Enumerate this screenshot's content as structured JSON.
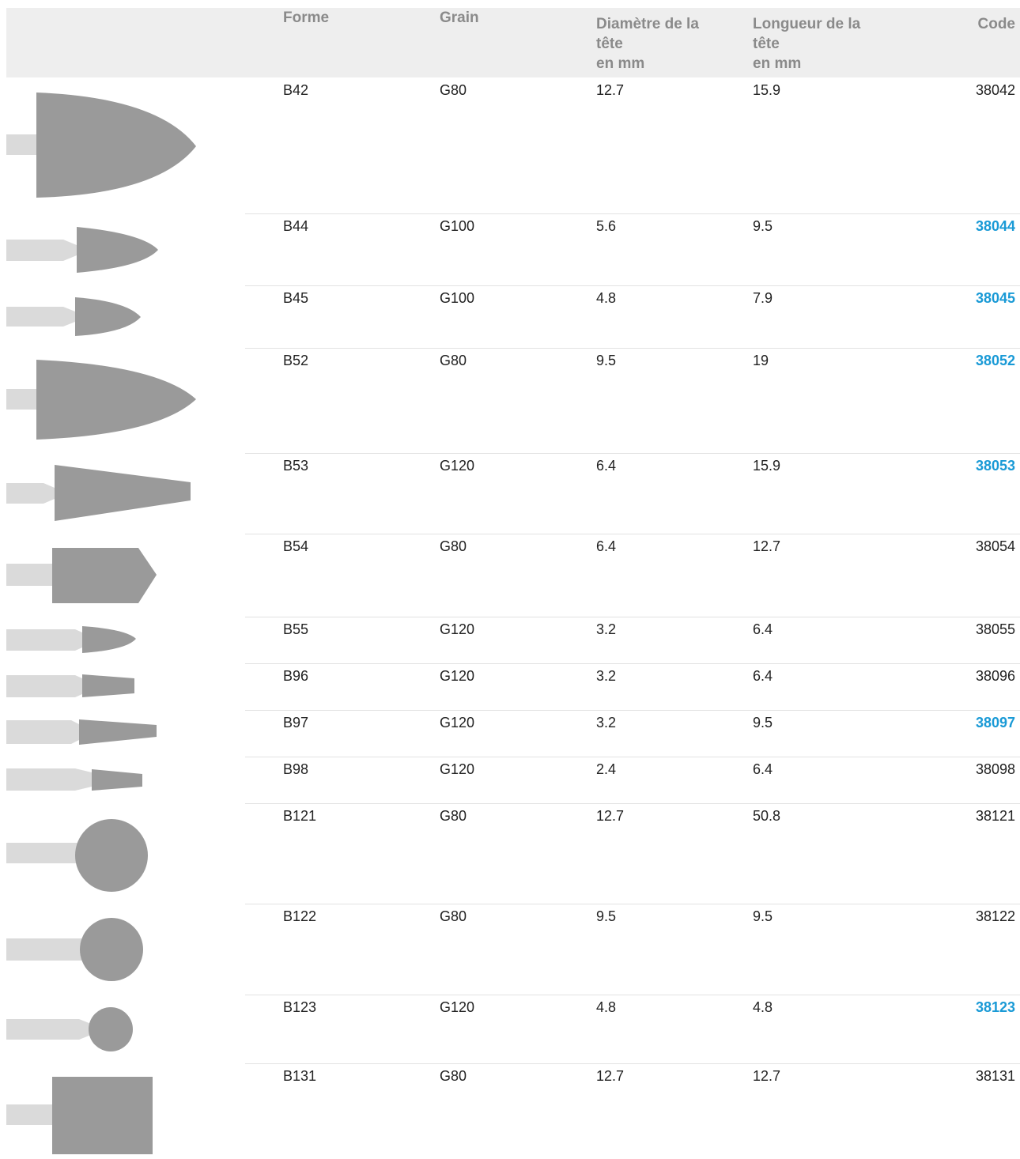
{
  "header": {
    "image": "",
    "forme": "Forme",
    "grain": "Grain",
    "diametre": [
      "Diamètre de la",
      "tête",
      "en mm"
    ],
    "longueur": [
      "Longueur de la",
      "tête",
      "en mm"
    ],
    "code": "Code"
  },
  "rows": [
    {
      "forme": "B42",
      "grain": "G80",
      "diametre": "12.7",
      "longueur": "15.9",
      "code": "38042",
      "link": false
    },
    {
      "forme": "B44",
      "grain": "G100",
      "diametre": "5.6",
      "longueur": "9.5",
      "code": "38044",
      "link": true
    },
    {
      "forme": "B45",
      "grain": "G100",
      "diametre": "4.8",
      "longueur": "7.9",
      "code": "38045",
      "link": true
    },
    {
      "forme": "B52",
      "grain": "G80",
      "diametre": "9.5",
      "longueur": "19",
      "code": "38052",
      "link": true
    },
    {
      "forme": "B53",
      "grain": "G120",
      "diametre": "6.4",
      "longueur": "15.9",
      "code": "38053",
      "link": true
    },
    {
      "forme": "B54",
      "grain": "G80",
      "diametre": "6.4",
      "longueur": "12.7",
      "code": "38054",
      "link": false
    },
    {
      "forme": "B55",
      "grain": "G120",
      "diametre": "3.2",
      "longueur": "6.4",
      "code": "38055",
      "link": false
    },
    {
      "forme": "B96",
      "grain": "G120",
      "diametre": "3.2",
      "longueur": "6.4",
      "code": "38096",
      "link": false
    },
    {
      "forme": "B97",
      "grain": "G120",
      "diametre": "3.2",
      "longueur": "9.5",
      "code": "38097",
      "link": true
    },
    {
      "forme": "B98",
      "grain": "G120",
      "diametre": "2.4",
      "longueur": "6.4",
      "code": "38098",
      "link": false
    },
    {
      "forme": "B121",
      "grain": "G80",
      "diametre": "12.7",
      "longueur": "50.8",
      "code": "38121",
      "link": false
    },
    {
      "forme": "B122",
      "grain": "G80",
      "diametre": "9.5",
      "longueur": "9.5",
      "code": "38122",
      "link": false
    },
    {
      "forme": "B123",
      "grain": "G120",
      "diametre": "4.8",
      "longueur": "4.8",
      "code": "38123",
      "link": true
    },
    {
      "forme": "B131",
      "grain": "G80",
      "diametre": "12.7",
      "longueur": "12.7",
      "code": "38131",
      "link": false
    }
  ]
}
